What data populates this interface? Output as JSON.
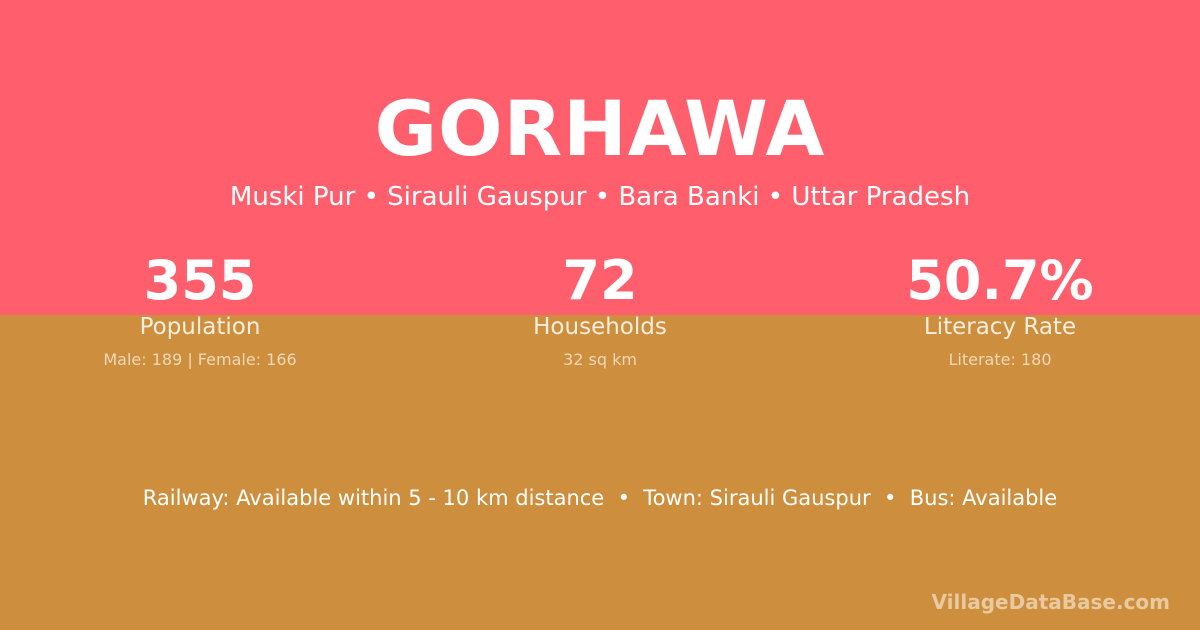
{
  "title": "GORHAWA",
  "subtitle": "Muski Pur • Sirauli Gauspur • Bara Banki • Uttar Pradesh",
  "stats": [
    {
      "value": "355",
      "label": "Population",
      "detail": "Male: 189 | Female: 166"
    },
    {
      "value": "72",
      "label": "Households",
      "detail": "32 sq km"
    },
    {
      "value": "50.7%",
      "label": "Literacy Rate",
      "detail": "Literate: 180"
    }
  ],
  "info": "Railway: Available within 5 - 10 km distance  •  Town: Sirauli Gauspur  •  Bus: Available",
  "brand": "VillageDataBase.com",
  "colors": {
    "top": "#ff5f6d",
    "bottom": "#cd8f3e"
  }
}
